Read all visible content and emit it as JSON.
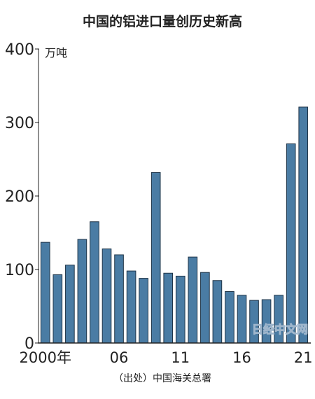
{
  "chart_data": {
    "type": "bar",
    "title": "中国的铝进口量创历史新高",
    "ylabel": "万吨",
    "ylim": [
      0,
      400
    ],
    "yticks": [
      0,
      100,
      200,
      300,
      400
    ],
    "categories": [
      "2000",
      "2001",
      "2002",
      "2003",
      "2004",
      "2005",
      "2006",
      "2007",
      "2008",
      "2009",
      "2010",
      "2011",
      "2012",
      "2013",
      "2014",
      "2015",
      "2016",
      "2017",
      "2018",
      "2019",
      "2020",
      "2021"
    ],
    "values": [
      137,
      93,
      106,
      141,
      165,
      128,
      120,
      98,
      88,
      232,
      95,
      91,
      117,
      96,
      85,
      70,
      65,
      58,
      59,
      65,
      271,
      321
    ],
    "xtick_labels": [
      {
        "index": 0,
        "label": "2000年"
      },
      {
        "index": 6,
        "label": "06"
      },
      {
        "index": 11,
        "label": "11"
      },
      {
        "index": 16,
        "label": "16"
      },
      {
        "index": 21,
        "label": "21"
      }
    ],
    "source": "（出处）中国海关总署",
    "grid": false,
    "colors": {
      "bar": "#4a7ca4",
      "bar_edge": "#1f3447"
    }
  },
  "watermark": "日经中文网"
}
